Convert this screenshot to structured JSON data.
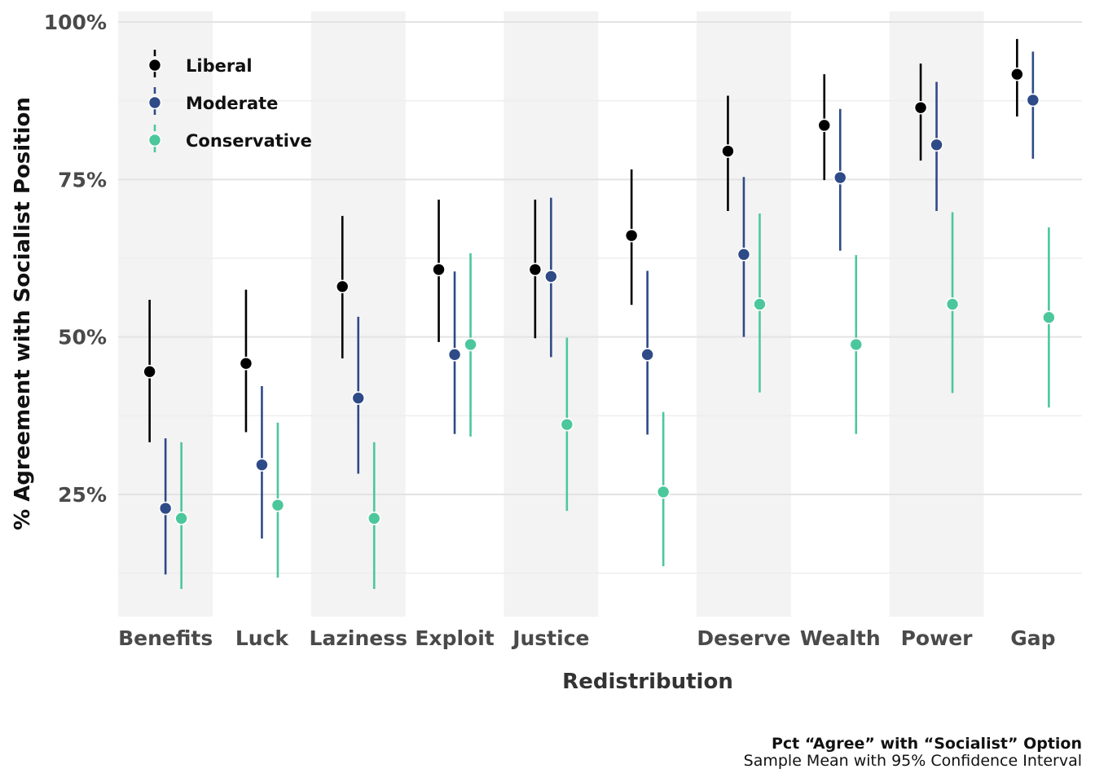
{
  "chart_data": {
    "type": "scatter",
    "subtype": "point-range",
    "ylabel": "% Agreement with Socialist Position",
    "xlabel": "Redistribution",
    "ylim": [
      0.07,
      1.0
    ],
    "yticks": [
      0.25,
      0.5,
      0.75,
      1.0
    ],
    "ytick_labels": [
      "25%",
      "50%",
      "75%",
      "100%"
    ],
    "grid": true,
    "alternating_bands": true,
    "legend_position": "top-left",
    "categories": [
      "Benefits",
      "Luck",
      "Laziness",
      "Exploit",
      "Justice",
      "",
      "Deserve",
      "Wealth",
      "Power",
      "Gap"
    ],
    "series": [
      {
        "name": "Liberal",
        "color": "#000000",
        "values": [
          0.445,
          0.458,
          0.58,
          0.607,
          0.607,
          0.661,
          0.795,
          0.836,
          0.864,
          0.917
        ],
        "ci_low": [
          0.333,
          0.349,
          0.466,
          0.492,
          0.498,
          0.551,
          0.7,
          0.749,
          0.78,
          0.85
        ],
        "ci_high": [
          0.559,
          0.575,
          0.692,
          0.718,
          0.718,
          0.766,
          0.883,
          0.917,
          0.934,
          0.973
        ]
      },
      {
        "name": "Moderate",
        "color": "#2e4a87",
        "values": [
          0.228,
          0.297,
          0.403,
          0.472,
          0.596,
          0.472,
          0.631,
          0.753,
          0.805,
          0.876
        ],
        "ci_low": [
          0.123,
          0.18,
          0.283,
          0.346,
          0.468,
          0.345,
          0.5,
          0.637,
          0.7,
          0.783
        ],
        "ci_high": [
          0.339,
          0.422,
          0.532,
          0.604,
          0.721,
          0.605,
          0.754,
          0.862,
          0.905,
          0.953
        ]
      },
      {
        "name": "Conservative",
        "color": "#4cc79c",
        "values": [
          0.212,
          0.233,
          0.212,
          0.488,
          0.361,
          0.254,
          0.552,
          0.488,
          0.552,
          0.531
        ],
        "ci_low": [
          0.1,
          0.118,
          0.1,
          0.342,
          0.224,
          0.136,
          0.412,
          0.346,
          0.411,
          0.388
        ],
        "ci_high": [
          0.333,
          0.364,
          0.333,
          0.633,
          0.499,
          0.381,
          0.696,
          0.63,
          0.698,
          0.674
        ]
      }
    ],
    "caption_title": "Pct “Agree” with “Socialist” Option",
    "caption_subtitle": "Sample Mean with 95% Confidence Interval"
  },
  "style": {
    "band_color": "#f3f3f3",
    "grid_color": "#e3e3e3",
    "grid_minor_color": "#eeeeee"
  }
}
